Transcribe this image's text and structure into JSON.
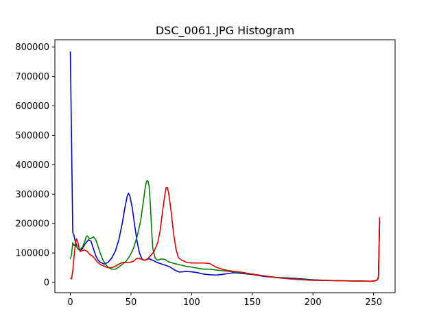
{
  "chart_data": {
    "type": "line",
    "title": "DSC_0061.JPG Histogram",
    "xlabel": "",
    "ylabel": "",
    "xlim": [
      -12.75,
      267.75
    ],
    "ylim": [
      -35000,
      825000
    ],
    "x_ticks": [
      0,
      50,
      100,
      150,
      200,
      250
    ],
    "x_tick_labels": [
      "0",
      "50",
      "100",
      "150",
      "200",
      "250"
    ],
    "y_ticks": [
      0,
      100000,
      200000,
      300000,
      400000,
      500000,
      600000,
      700000,
      800000
    ],
    "y_tick_labels": [
      "0",
      "100000",
      "200000",
      "300000",
      "400000",
      "500000",
      "600000",
      "700000",
      "800000"
    ],
    "grid": false,
    "legend": "none",
    "series": [
      {
        "color": "#0000cc",
        "points": [
          [
            0,
            785000
          ],
          [
            1,
            480000
          ],
          [
            2,
            170000
          ],
          [
            3,
            160000
          ],
          [
            4,
            140000
          ],
          [
            6,
            115000
          ],
          [
            8,
            108000
          ],
          [
            10,
            115000
          ],
          [
            12,
            130000
          ],
          [
            15,
            145000
          ],
          [
            17,
            140000
          ],
          [
            19,
            115000
          ],
          [
            21,
            90000
          ],
          [
            23,
            75000
          ],
          [
            25,
            68000
          ],
          [
            28,
            62000
          ],
          [
            31,
            68000
          ],
          [
            34,
            82000
          ],
          [
            37,
            105000
          ],
          [
            40,
            145000
          ],
          [
            43,
            205000
          ],
          [
            45,
            255000
          ],
          [
            47,
            295000
          ],
          [
            48,
            303000
          ],
          [
            49,
            295000
          ],
          [
            51,
            255000
          ],
          [
            53,
            195000
          ],
          [
            55,
            140000
          ],
          [
            57,
            100000
          ],
          [
            59,
            80000
          ],
          [
            61,
            75000
          ],
          [
            63,
            78000
          ],
          [
            65,
            80000
          ],
          [
            68,
            75000
          ],
          [
            72,
            67000
          ],
          [
            77,
            60000
          ],
          [
            82,
            53000
          ],
          [
            86,
            42000
          ],
          [
            90,
            35000
          ],
          [
            95,
            37000
          ],
          [
            100,
            36000
          ],
          [
            105,
            33000
          ],
          [
            110,
            28000
          ],
          [
            115,
            26000
          ],
          [
            120,
            25000
          ],
          [
            125,
            27000
          ],
          [
            130,
            30000
          ],
          [
            135,
            33000
          ],
          [
            140,
            31000
          ],
          [
            150,
            27000
          ],
          [
            160,
            20000
          ],
          [
            170,
            17000
          ],
          [
            180,
            15000
          ],
          [
            190,
            12000
          ],
          [
            200,
            9000
          ],
          [
            210,
            7000
          ],
          [
            220,
            6000
          ],
          [
            230,
            5000
          ],
          [
            240,
            4500
          ],
          [
            248,
            4000
          ],
          [
            251,
            5000
          ],
          [
            253,
            8000
          ],
          [
            254,
            15000
          ],
          [
            255,
            210000
          ]
        ]
      },
      {
        "color": "#008000",
        "points": [
          [
            0,
            80000
          ],
          [
            1,
            95000
          ],
          [
            2,
            135000
          ],
          [
            3,
            125000
          ],
          [
            4,
            130000
          ],
          [
            6,
            115000
          ],
          [
            8,
            112000
          ],
          [
            10,
            120000
          ],
          [
            12,
            140000
          ],
          [
            13,
            155000
          ],
          [
            14,
            158000
          ],
          [
            16,
            148000
          ],
          [
            18,
            152000
          ],
          [
            19,
            155000
          ],
          [
            21,
            145000
          ],
          [
            23,
            120000
          ],
          [
            25,
            95000
          ],
          [
            27,
            75000
          ],
          [
            29,
            62000
          ],
          [
            31,
            52000
          ],
          [
            34,
            45000
          ],
          [
            37,
            45000
          ],
          [
            40,
            52000
          ],
          [
            43,
            62000
          ],
          [
            46,
            72000
          ],
          [
            49,
            90000
          ],
          [
            52,
            115000
          ],
          [
            55,
            155000
          ],
          [
            58,
            210000
          ],
          [
            60,
            270000
          ],
          [
            62,
            330000
          ],
          [
            63,
            345000
          ],
          [
            64,
            345000
          ],
          [
            65,
            325000
          ],
          [
            66,
            265000
          ],
          [
            67,
            180000
          ],
          [
            68,
            115000
          ],
          [
            70,
            82000
          ],
          [
            72,
            75000
          ],
          [
            75,
            80000
          ],
          [
            78,
            78000
          ],
          [
            81,
            70000
          ],
          [
            85,
            65000
          ],
          [
            90,
            60000
          ],
          [
            95,
            55000
          ],
          [
            100,
            52000
          ],
          [
            105,
            48000
          ],
          [
            110,
            45000
          ],
          [
            115,
            45000
          ],
          [
            120,
            42000
          ],
          [
            130,
            38000
          ],
          [
            140,
            33000
          ],
          [
            150,
            28000
          ],
          [
            160,
            22000
          ],
          [
            170,
            17000
          ],
          [
            180,
            13000
          ],
          [
            190,
            10000
          ],
          [
            200,
            8000
          ],
          [
            210,
            7000
          ],
          [
            220,
            6000
          ],
          [
            230,
            5000
          ],
          [
            240,
            4500
          ],
          [
            248,
            4000
          ],
          [
            251,
            5000
          ],
          [
            253,
            8000
          ],
          [
            254,
            15000
          ],
          [
            255,
            205000
          ]
        ]
      },
      {
        "color": "#dd0000",
        "points": [
          [
            0,
            15000
          ],
          [
            1,
            12000
          ],
          [
            2,
            40000
          ],
          [
            3,
            85000
          ],
          [
            4,
            125000
          ],
          [
            5,
            148000
          ],
          [
            6,
            140000
          ],
          [
            7,
            120000
          ],
          [
            8,
            105000
          ],
          [
            10,
            108000
          ],
          [
            12,
            110000
          ],
          [
            14,
            105000
          ],
          [
            16,
            95000
          ],
          [
            18,
            90000
          ],
          [
            20,
            82000
          ],
          [
            22,
            70000
          ],
          [
            25,
            60000
          ],
          [
            28,
            55000
          ],
          [
            31,
            50000
          ],
          [
            34,
            50000
          ],
          [
            37,
            55000
          ],
          [
            40,
            62000
          ],
          [
            43,
            68000
          ],
          [
            46,
            68000
          ],
          [
            49,
            68000
          ],
          [
            52,
            72000
          ],
          [
            55,
            82000
          ],
          [
            58,
            80000
          ],
          [
            61,
            75000
          ],
          [
            63,
            78000
          ],
          [
            66,
            90000
          ],
          [
            69,
            105000
          ],
          [
            72,
            135000
          ],
          [
            74,
            175000
          ],
          [
            76,
            240000
          ],
          [
            78,
            300000
          ],
          [
            79,
            322000
          ],
          [
            80,
            322000
          ],
          [
            81,
            305000
          ],
          [
            83,
            245000
          ],
          [
            85,
            170000
          ],
          [
            87,
            115000
          ],
          [
            89,
            85000
          ],
          [
            92,
            75000
          ],
          [
            96,
            68000
          ],
          [
            100,
            66000
          ],
          [
            105,
            66000
          ],
          [
            110,
            66000
          ],
          [
            115,
            64000
          ],
          [
            120,
            52000
          ],
          [
            125,
            45000
          ],
          [
            130,
            40000
          ],
          [
            140,
            35000
          ],
          [
            150,
            28000
          ],
          [
            160,
            22000
          ],
          [
            170,
            16000
          ],
          [
            180,
            12000
          ],
          [
            190,
            9000
          ],
          [
            200,
            7000
          ],
          [
            210,
            6500
          ],
          [
            220,
            6000
          ],
          [
            230,
            5000
          ],
          [
            240,
            4500
          ],
          [
            248,
            4000
          ],
          [
            251,
            5000
          ],
          [
            253,
            8000
          ],
          [
            254,
            20000
          ],
          [
            255,
            222000
          ]
        ]
      }
    ]
  }
}
